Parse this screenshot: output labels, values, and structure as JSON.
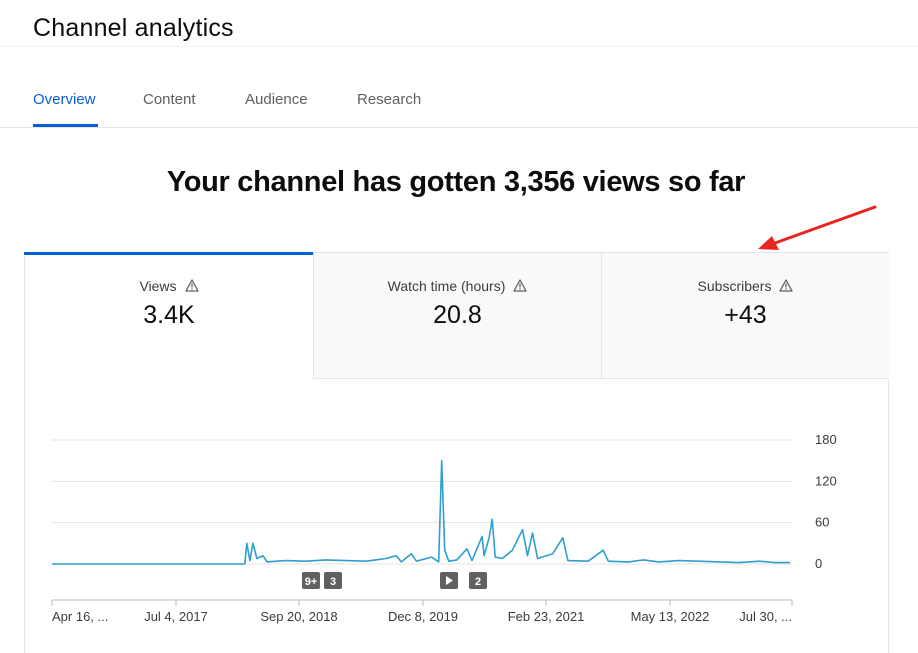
{
  "header": {
    "title": "Channel analytics"
  },
  "tabs": [
    {
      "label": "Overview",
      "active": true
    },
    {
      "label": "Content",
      "active": false
    },
    {
      "label": "Audience",
      "active": false
    },
    {
      "label": "Research",
      "active": false
    }
  ],
  "headline": "Your channel has gotten 3,356 views so far",
  "metrics": [
    {
      "label": "Views",
      "value": "3.4K",
      "icon": "warning-icon",
      "active": true
    },
    {
      "label": "Watch time (hours)",
      "value": "20.8",
      "icon": "warning-icon",
      "active": false
    },
    {
      "label": "Subscribers",
      "value": "+43",
      "icon": "warning-icon",
      "active": false
    }
  ],
  "annotation": {
    "type": "arrow",
    "color": "#e8261f",
    "points_to": "subscribers-metric"
  },
  "markers": [
    {
      "label": "9+",
      "kind": "text"
    },
    {
      "label": "3",
      "kind": "text"
    },
    {
      "label": "",
      "kind": "play-icon"
    },
    {
      "label": "2",
      "kind": "text"
    }
  ],
  "colors": {
    "accent": "#065fd4",
    "line": "#2e9fce",
    "marker": "#606060"
  },
  "chart_data": {
    "type": "line",
    "series": [
      {
        "values": [
          [
            2016.29,
            0
          ],
          [
            2018.2,
            0
          ],
          [
            2018.22,
            30
          ],
          [
            2018.25,
            5
          ],
          [
            2018.28,
            30
          ],
          [
            2018.32,
            8
          ],
          [
            2018.38,
            12
          ],
          [
            2018.42,
            3
          ],
          [
            2018.6,
            5
          ],
          [
            2018.8,
            4
          ],
          [
            2019.0,
            6
          ],
          [
            2019.2,
            5
          ],
          [
            2019.4,
            4
          ],
          [
            2019.6,
            8
          ],
          [
            2019.7,
            12
          ],
          [
            2019.75,
            3
          ],
          [
            2019.85,
            15
          ],
          [
            2019.9,
            4
          ],
          [
            2020.05,
            10
          ],
          [
            2020.12,
            3
          ],
          [
            2020.15,
            150
          ],
          [
            2020.18,
            20
          ],
          [
            2020.22,
            4
          ],
          [
            2020.3,
            6
          ],
          [
            2020.4,
            22
          ],
          [
            2020.45,
            5
          ],
          [
            2020.55,
            40
          ],
          [
            2020.57,
            12
          ],
          [
            2020.62,
            38
          ],
          [
            2020.65,
            65
          ],
          [
            2020.68,
            10
          ],
          [
            2020.75,
            8
          ],
          [
            2020.85,
            20
          ],
          [
            2020.95,
            50
          ],
          [
            2021.0,
            12
          ],
          [
            2021.05,
            45
          ],
          [
            2021.1,
            8
          ],
          [
            2021.25,
            15
          ],
          [
            2021.35,
            38
          ],
          [
            2021.4,
            5
          ],
          [
            2021.6,
            4
          ],
          [
            2021.75,
            20
          ],
          [
            2021.8,
            4
          ],
          [
            2022.0,
            3
          ],
          [
            2022.15,
            6
          ],
          [
            2022.3,
            3
          ],
          [
            2022.5,
            5
          ],
          [
            2022.7,
            4
          ],
          [
            2022.9,
            3
          ],
          [
            2023.1,
            2
          ],
          [
            2023.3,
            4
          ],
          [
            2023.45,
            2
          ],
          [
            2023.6,
            2
          ]
        ]
      }
    ],
    "x_ticks": [
      "Apr 16, ...",
      "Jul 4, 2017",
      "Sep 20, 2018",
      "Dec 8, 2019",
      "Feb 23, 2021",
      "May 13, 2022",
      "Jul 30, ..."
    ],
    "y_ticks": [
      "180",
      "120",
      "60",
      "0"
    ],
    "ylim": [
      0,
      180
    ],
    "grid": true
  }
}
